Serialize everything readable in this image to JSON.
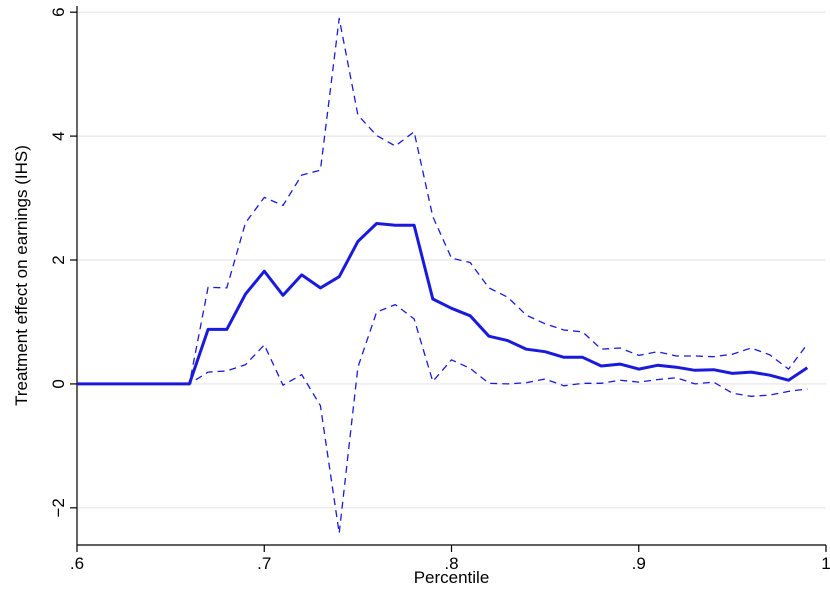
{
  "chart_data": {
    "type": "line",
    "title": "",
    "xlabel": "Percentile",
    "ylabel": "Treatment effect on earnings (IHS)",
    "xlim": [
      0.6,
      1.0
    ],
    "ylim": [
      -2.6,
      6.1
    ],
    "x_ticks": [
      0.6,
      0.7,
      0.8,
      0.9,
      1.0
    ],
    "x_tick_labels": [
      ".6",
      ".7",
      ".8",
      ".9",
      "1"
    ],
    "y_ticks": [
      -2,
      0,
      2,
      4,
      6
    ],
    "y_tick_labels": [
      "−2",
      "0",
      "2",
      "4",
      "6"
    ],
    "grid": "horizontal",
    "legend": "none",
    "colors": {
      "series": "#1a1adc",
      "grid": "#e6e6e6",
      "axis": "#000000"
    },
    "x": [
      0.6,
      0.61,
      0.62,
      0.63,
      0.64,
      0.65,
      0.66,
      0.67,
      0.68,
      0.69,
      0.7,
      0.71,
      0.72,
      0.73,
      0.74,
      0.75,
      0.76,
      0.77,
      0.78,
      0.79,
      0.8,
      0.81,
      0.82,
      0.83,
      0.84,
      0.85,
      0.86,
      0.87,
      0.88,
      0.89,
      0.9,
      0.91,
      0.92,
      0.93,
      0.94,
      0.95,
      0.96,
      0.97,
      0.98,
      0.99
    ],
    "series": [
      {
        "role": "estimate",
        "style": "solid",
        "values": [
          0,
          0,
          0,
          0,
          0,
          0,
          0,
          0.88,
          0.88,
          1.45,
          1.82,
          1.43,
          1.76,
          1.55,
          1.73,
          2.3,
          2.59,
          2.56,
          2.56,
          1.37,
          1.22,
          1.1,
          0.77,
          0.7,
          0.56,
          0.52,
          0.43,
          0.43,
          0.29,
          0.32,
          0.24,
          0.3,
          0.27,
          0.22,
          0.23,
          0.17,
          0.19,
          0.14,
          0.06,
          0.26
        ]
      },
      {
        "role": "upper-bound",
        "style": "dashed",
        "values": [
          0,
          0,
          0,
          0,
          0,
          0,
          0,
          1.56,
          1.55,
          2.6,
          3.01,
          2.88,
          3.37,
          3.45,
          5.9,
          4.34,
          4.01,
          3.84,
          4.07,
          2.7,
          2.03,
          1.96,
          1.55,
          1.4,
          1.11,
          0.97,
          0.87,
          0.84,
          0.56,
          0.58,
          0.46,
          0.52,
          0.45,
          0.45,
          0.44,
          0.48,
          0.58,
          0.47,
          0.24,
          0.64
        ]
      },
      {
        "role": "lower-bound",
        "style": "dashed",
        "values": [
          0,
          0,
          0,
          0,
          0,
          0,
          0,
          0.19,
          0.21,
          0.31,
          0.63,
          -0.02,
          0.15,
          -0.35,
          -2.41,
          0.27,
          1.16,
          1.28,
          1.05,
          0.04,
          0.39,
          0.25,
          0.01,
          0.0,
          0.02,
          0.08,
          -0.03,
          0.01,
          0.01,
          0.06,
          0.03,
          0.07,
          0.1,
          0.0,
          0.03,
          -0.15,
          -0.2,
          -0.18,
          -0.12,
          -0.08
        ]
      }
    ]
  }
}
